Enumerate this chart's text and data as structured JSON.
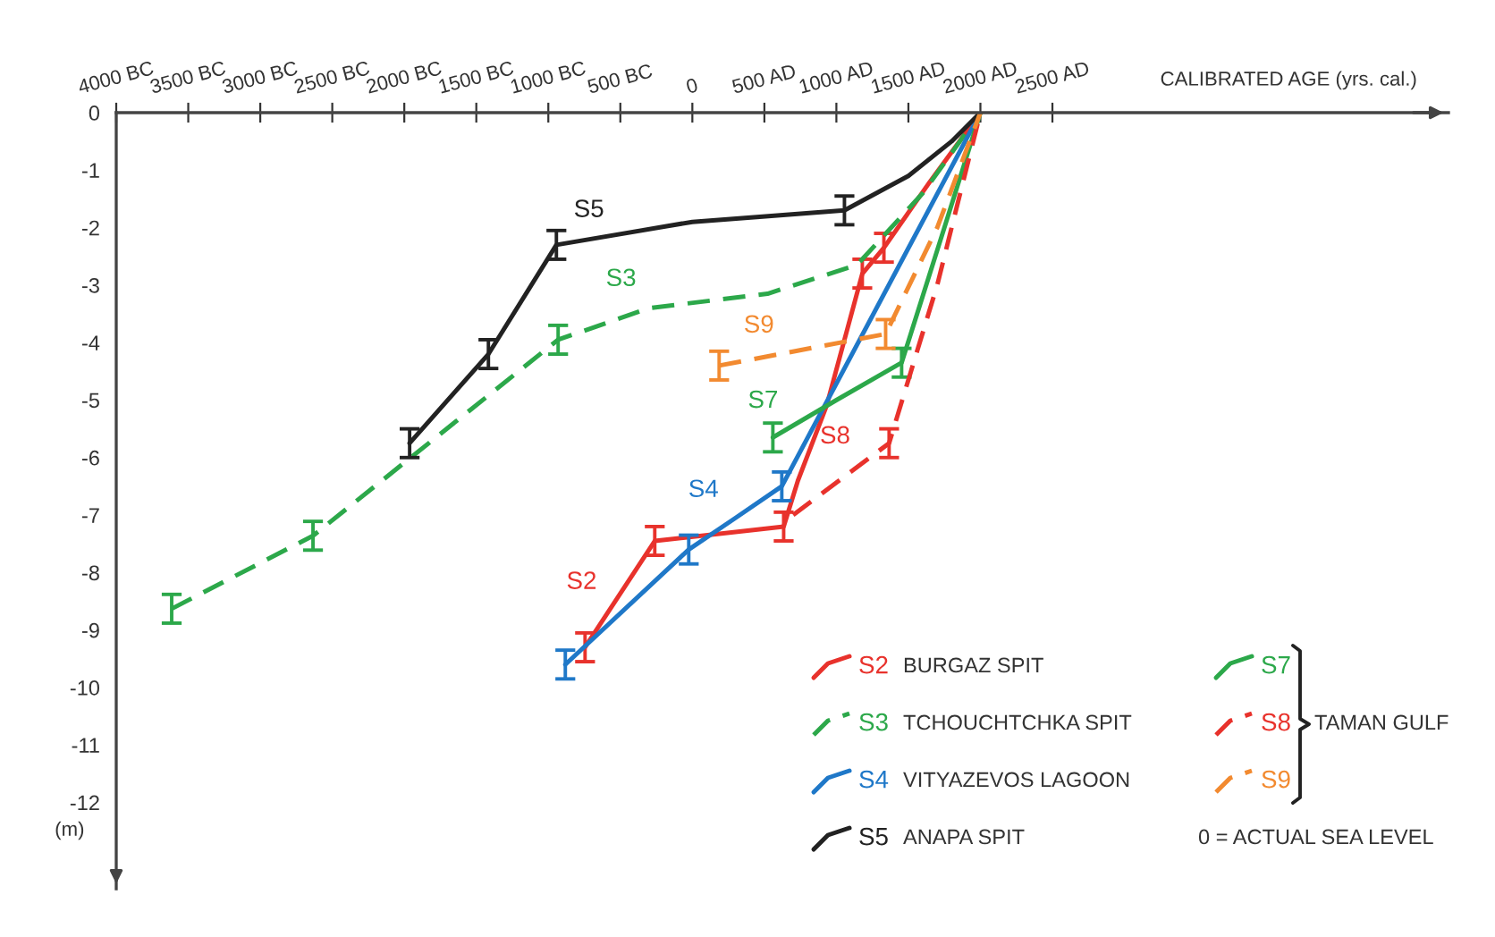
{
  "chart_data": {
    "type": "line",
    "xlabel": "CALIBRATED AGE (yrs. cal.)",
    "ylabel": "(m)",
    "xlim": [
      -4000,
      5250
    ],
    "ylim": [
      -13.5,
      0
    ],
    "xticks": [
      {
        "value": -4000,
        "label": "4000 BC"
      },
      {
        "value": -3500,
        "label": "3500 BC"
      },
      {
        "value": -3000,
        "label": "3000 BC"
      },
      {
        "value": -2500,
        "label": "2500 BC"
      },
      {
        "value": -2000,
        "label": "2000 BC"
      },
      {
        "value": -1500,
        "label": "1500 BC"
      },
      {
        "value": -1000,
        "label": "1000 BC"
      },
      {
        "value": -500,
        "label": "500 BC"
      },
      0,
      {
        "value": 500,
        "label": "500 AD"
      },
      {
        "value": 1000,
        "label": "1000 AD"
      },
      {
        "value": 1500,
        "label": "1500 AD"
      },
      {
        "value": 2000,
        "label": "2000 AD"
      },
      {
        "value": 2500,
        "label": "2500 AD"
      }
    ],
    "yticks": [
      0,
      -1,
      -2,
      -3,
      -4,
      -5,
      -6,
      -7,
      -8,
      -9,
      -10,
      -11,
      -12
    ],
    "grid": false,
    "legend": "bottom right",
    "marker": "none",
    "series": [
      {
        "name": "S2",
        "color": "#e8322c",
        "line_style": "solid",
        "x": [
          -745,
          -261,
          634,
          733,
          932,
          1180,
          1330,
          1650,
          2000
        ],
        "values": [
          -9.3,
          -7.45,
          -7.2,
          -6.4,
          -5.1,
          -2.8,
          -2.35,
          -1.2,
          0
        ],
        "errors": [
          0.25,
          0.25,
          0.25,
          null,
          null,
          0.25,
          0.25,
          null,
          null
        ]
      },
      {
        "name": "S3",
        "color": "#2ca84a",
        "line_style": "dashed",
        "x": [
          -3615,
          -2634,
          -932,
          -300,
          522,
          1143,
          1600,
          2000
        ],
        "values": [
          -8.63,
          -7.36,
          -3.95,
          -3.4,
          -3.15,
          -2.65,
          -1.4,
          0
        ],
        "errors": [
          0.25,
          0.25,
          0.25,
          null,
          null,
          null,
          null,
          null
        ]
      },
      {
        "name": "S4",
        "color": "#1f78c8",
        "line_style": "solid",
        "x": [
          -882,
          -25,
          300,
          621,
          2000
        ],
        "values": [
          -9.6,
          -7.6,
          -7.05,
          -6.5,
          0
        ],
        "errors": [
          0.25,
          0.25,
          null,
          0.25,
          null
        ]
      },
      {
        "name": "S5",
        "color": "#222222",
        "line_style": "solid",
        "x": [
          -1963,
          -1416,
          -944,
          0,
          1056,
          1500,
          1800,
          2000
        ],
        "values": [
          -5.75,
          -4.2,
          -2.3,
          -1.9,
          -1.7,
          -1.1,
          -0.5,
          0
        ],
        "errors": [
          0.25,
          0.25,
          0.25,
          null,
          0.25,
          null,
          null,
          null
        ]
      },
      {
        "name": "S7",
        "color": "#2ca84a",
        "line_style": "solid",
        "x": [
          559,
          1000,
          1453,
          1750,
          2000
        ],
        "values": [
          -5.65,
          -5.0,
          -4.35,
          -2.0,
          0
        ],
        "errors": [
          0.25,
          null,
          0.25,
          null,
          null
        ]
      },
      {
        "name": "S8",
        "color": "#e8322c",
        "line_style": "dashed",
        "x": [
          700,
          1366,
          1700,
          2000
        ],
        "values": [
          -7.0,
          -5.75,
          -3.0,
          0
        ],
        "errors": [
          null,
          0.25,
          null,
          null
        ]
      },
      {
        "name": "S9",
        "color": "#f28a30",
        "line_style": "dashed",
        "x": [
          186,
          1342,
          1700,
          2000
        ],
        "values": [
          -4.4,
          -3.85,
          -2.0,
          0
        ],
        "errors": [
          0.25,
          0.25,
          null,
          null
        ]
      }
    ],
    "annotations": [
      {
        "text": "S2",
        "x": -560,
        "y": -8.59
      },
      {
        "text": "S3",
        "x": -286,
        "y": -3.32
      },
      {
        "text": "S4",
        "x": 286,
        "y": -6.99
      },
      {
        "text": "S5",
        "x": -509,
        "y": -2.12
      },
      {
        "text": "S7",
        "x": 700,
        "y": -5.44
      },
      {
        "text": "S8",
        "x": 1200,
        "y": -6.06
      },
      {
        "text": "S9",
        "x": 671,
        "y": -4.13
      },
      "BURGAZ SPIT",
      "TCHOUCHTCHKA SPIT",
      "VITYAZEVOS LAGOON",
      "ANAPA SPIT",
      "TAMAN GULF",
      "0 = ACTUAL SEA LEVEL"
    ]
  }
}
